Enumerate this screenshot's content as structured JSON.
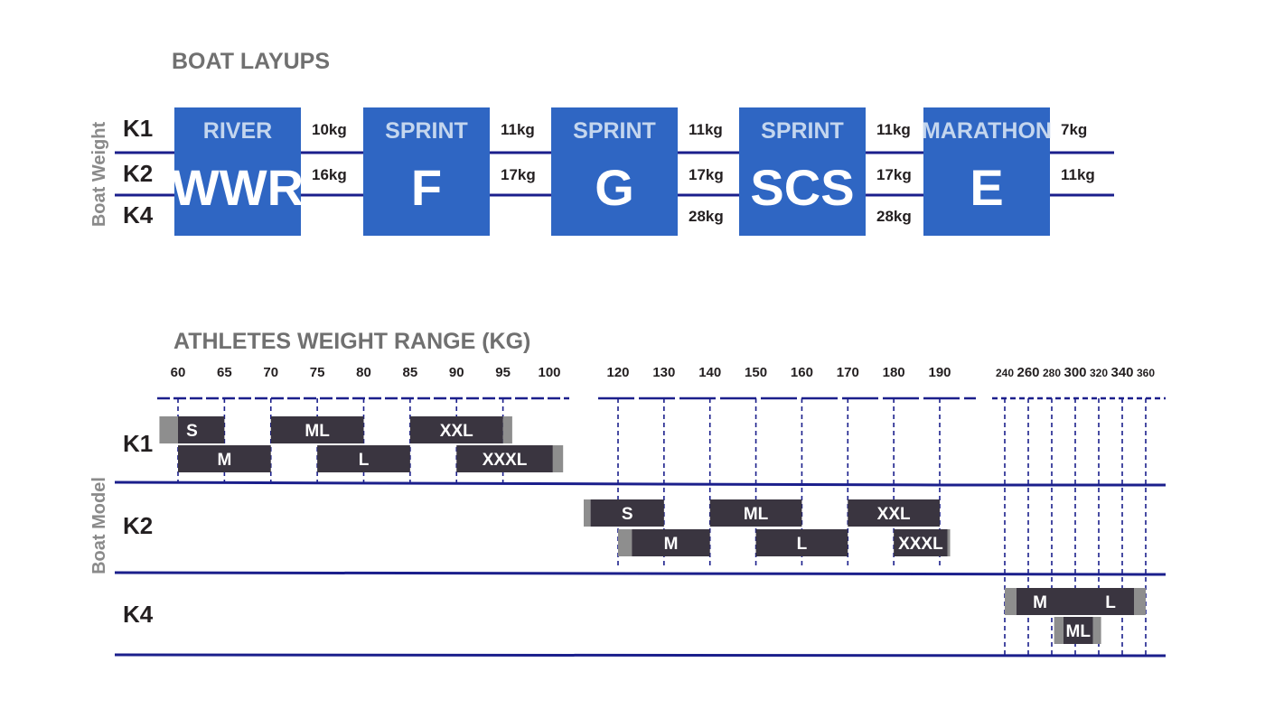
{
  "colors": {
    "navy": "#1b1f8c",
    "box_blue": "#2f66c3",
    "bar_dark": "#3a3540",
    "bar_tolerance": "#8e8e8e",
    "title_gray": "#707070"
  },
  "chart_data": [
    {
      "type": "table",
      "title": "BOAT LAYUPS",
      "ylabel": "Boat Weight",
      "rows": [
        "K1",
        "K2",
        "K4"
      ],
      "layups": [
        {
          "category": "RIVER",
          "code": "WWR",
          "weights": {
            "K1": "10kg",
            "K2": "16kg"
          }
        },
        {
          "category": "SPRINT",
          "code": "F",
          "weights": {
            "K1": "11kg",
            "K2": "17kg"
          }
        },
        {
          "category": "SPRINT",
          "code": "G",
          "weights": {
            "K1": "11kg",
            "K2": "17kg",
            "K4": "28kg"
          }
        },
        {
          "category": "SPRINT",
          "code": "SCS",
          "weights": {
            "K1": "11kg",
            "K2": "17kg",
            "K4": "28kg"
          }
        },
        {
          "category": "MARATHON",
          "code": "E",
          "weights": {
            "K1": "7kg",
            "K2": "11kg"
          }
        }
      ]
    },
    {
      "type": "bar",
      "title": "ATHLETES WEIGHT RANGE (KG)",
      "ylabel": "Boat Model",
      "segments": [
        {
          "ticks": [
            60,
            65,
            70,
            75,
            80,
            85,
            90,
            95,
            100
          ]
        },
        {
          "ticks": [
            120,
            130,
            140,
            150,
            160,
            170,
            180,
            190
          ]
        },
        {
          "ticks": [
            240,
            260,
            280,
            300,
            320,
            340,
            360
          ]
        }
      ],
      "series": [
        {
          "boat": "K1",
          "size": "S",
          "from": 60,
          "to": 65,
          "tolerance_from": 58
        },
        {
          "boat": "K1",
          "size": "M",
          "from": 60,
          "to": 70
        },
        {
          "boat": "K1",
          "size": "ML",
          "from": 70,
          "to": 80
        },
        {
          "boat": "K1",
          "size": "L",
          "from": 75,
          "to": 85
        },
        {
          "boat": "K1",
          "size": "XXL",
          "from": 85,
          "to": 95,
          "tolerance_to": 96
        },
        {
          "boat": "K1",
          "size": "XXXL",
          "from": 90,
          "to": 101,
          "tolerance_to": 104
        },
        {
          "boat": "K2",
          "size": "S",
          "from": 112,
          "to": 130,
          "tolerance_from": 110
        },
        {
          "boat": "K2",
          "size": "M",
          "from": 123,
          "to": 140,
          "tolerance_from": 120
        },
        {
          "boat": "K2",
          "size": "ML",
          "from": 140,
          "to": 160
        },
        {
          "boat": "K2",
          "size": "L",
          "from": 150,
          "to": 170
        },
        {
          "boat": "K2",
          "size": "XXL",
          "from": 170,
          "to": 190
        },
        {
          "boat": "K2",
          "size": "XXXL",
          "from": 180,
          "to": 196,
          "tolerance_to": 198
        },
        {
          "boat": "K4",
          "size": "M",
          "from": 250,
          "to": 350,
          "tolerance_from": 240,
          "tolerance_to": 360
        },
        {
          "boat": "K4",
          "size": "L",
          "from": 250,
          "to": 350
        },
        {
          "boat": "K4",
          "size": "ML",
          "from": 290,
          "to": 315,
          "tolerance_from": 282,
          "tolerance_to": 322
        }
      ]
    }
  ]
}
